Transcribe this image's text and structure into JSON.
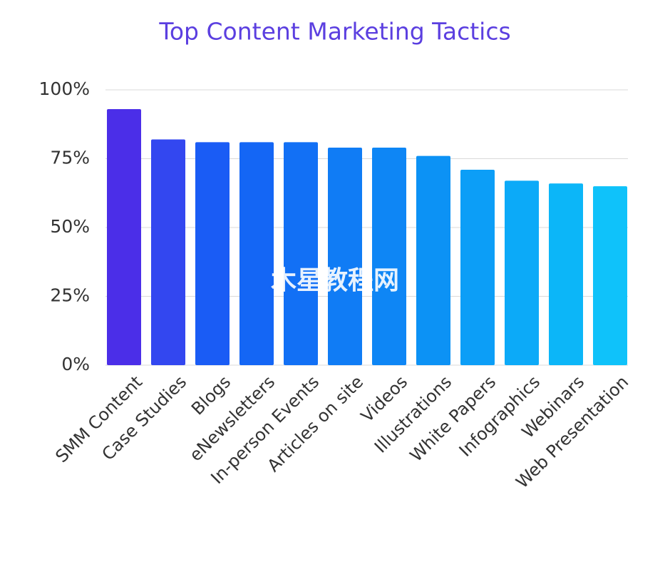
{
  "chart_data": {
    "type": "bar",
    "title": "Top Content Marketing Tactics",
    "watermark": "木星教程网",
    "categories": [
      "SMM Content",
      "Case Studies",
      "Blogs",
      "eNewsletters",
      "In-person Events",
      "Articles on site",
      "Videos",
      "Illustrations",
      "White Papers",
      "Infographics",
      "Webinars",
      "Web Presentation"
    ],
    "values": [
      93,
      82,
      81,
      81,
      81,
      79,
      79,
      76,
      71,
      67,
      66,
      65
    ],
    "colors": [
      "#4b2ee8",
      "#3347f0",
      "#1a5cf5",
      "#1466f5",
      "#1270f5",
      "#107cf5",
      "#0e86f5",
      "#0c92f5",
      "#0c9ef7",
      "#0caaf8",
      "#0cb6f8",
      "#0fc2fa"
    ],
    "ylim": [
      0,
      100
    ],
    "yticks": [
      {
        "value": 0,
        "label": "0%"
      },
      {
        "value": 25,
        "label": "25%"
      },
      {
        "value": 50,
        "label": "50%"
      },
      {
        "value": 75,
        "label": "75%"
      },
      {
        "value": 100,
        "label": "100%"
      }
    ],
    "grid": true
  }
}
